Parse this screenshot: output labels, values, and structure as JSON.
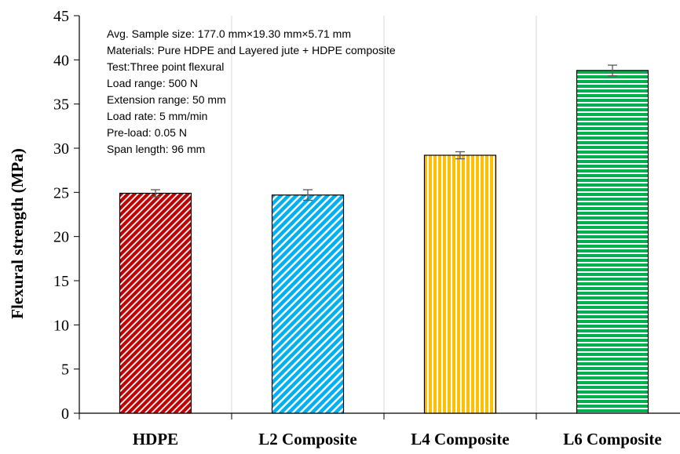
{
  "chart_data": {
    "type": "bar",
    "categories": [
      "HDPE",
      "L2 Composite",
      "L4 Composite",
      "L6 Composite"
    ],
    "values": [
      24.9,
      24.7,
      29.2,
      38.8
    ],
    "errors": [
      0.4,
      0.6,
      0.4,
      0.6
    ],
    "ylabel": "Flexural strength (MPa)",
    "xlabel": "",
    "ylim": [
      0,
      45
    ],
    "yticks": [
      "0",
      "5",
      "10",
      "15",
      "20",
      "25",
      "30",
      "35",
      "40",
      "45"
    ],
    "grid": "vertical",
    "bar_styles": [
      {
        "fill": "#c00000",
        "pattern": "diagonal-dense"
      },
      {
        "fill": "#00b0f0",
        "pattern": "diagonal-wide"
      },
      {
        "fill": "#ffc000",
        "pattern": "vertical-stripes"
      },
      {
        "fill": "#00b050",
        "pattern": "horizontal-stripes"
      }
    ],
    "annotations": [
      "Avg. Sample size: 177.0 mm×19.30 mm×5.71 mm",
      "Materials: Pure HDPE and Layered jute + HDPE composite",
      "Test:Three point flexural",
      "Load range: 500 N",
      "Extension range: 50  mm",
      "Load rate: 5 mm/min",
      "Pre-load: 0.05 N",
      "Span length: 96 mm"
    ]
  }
}
